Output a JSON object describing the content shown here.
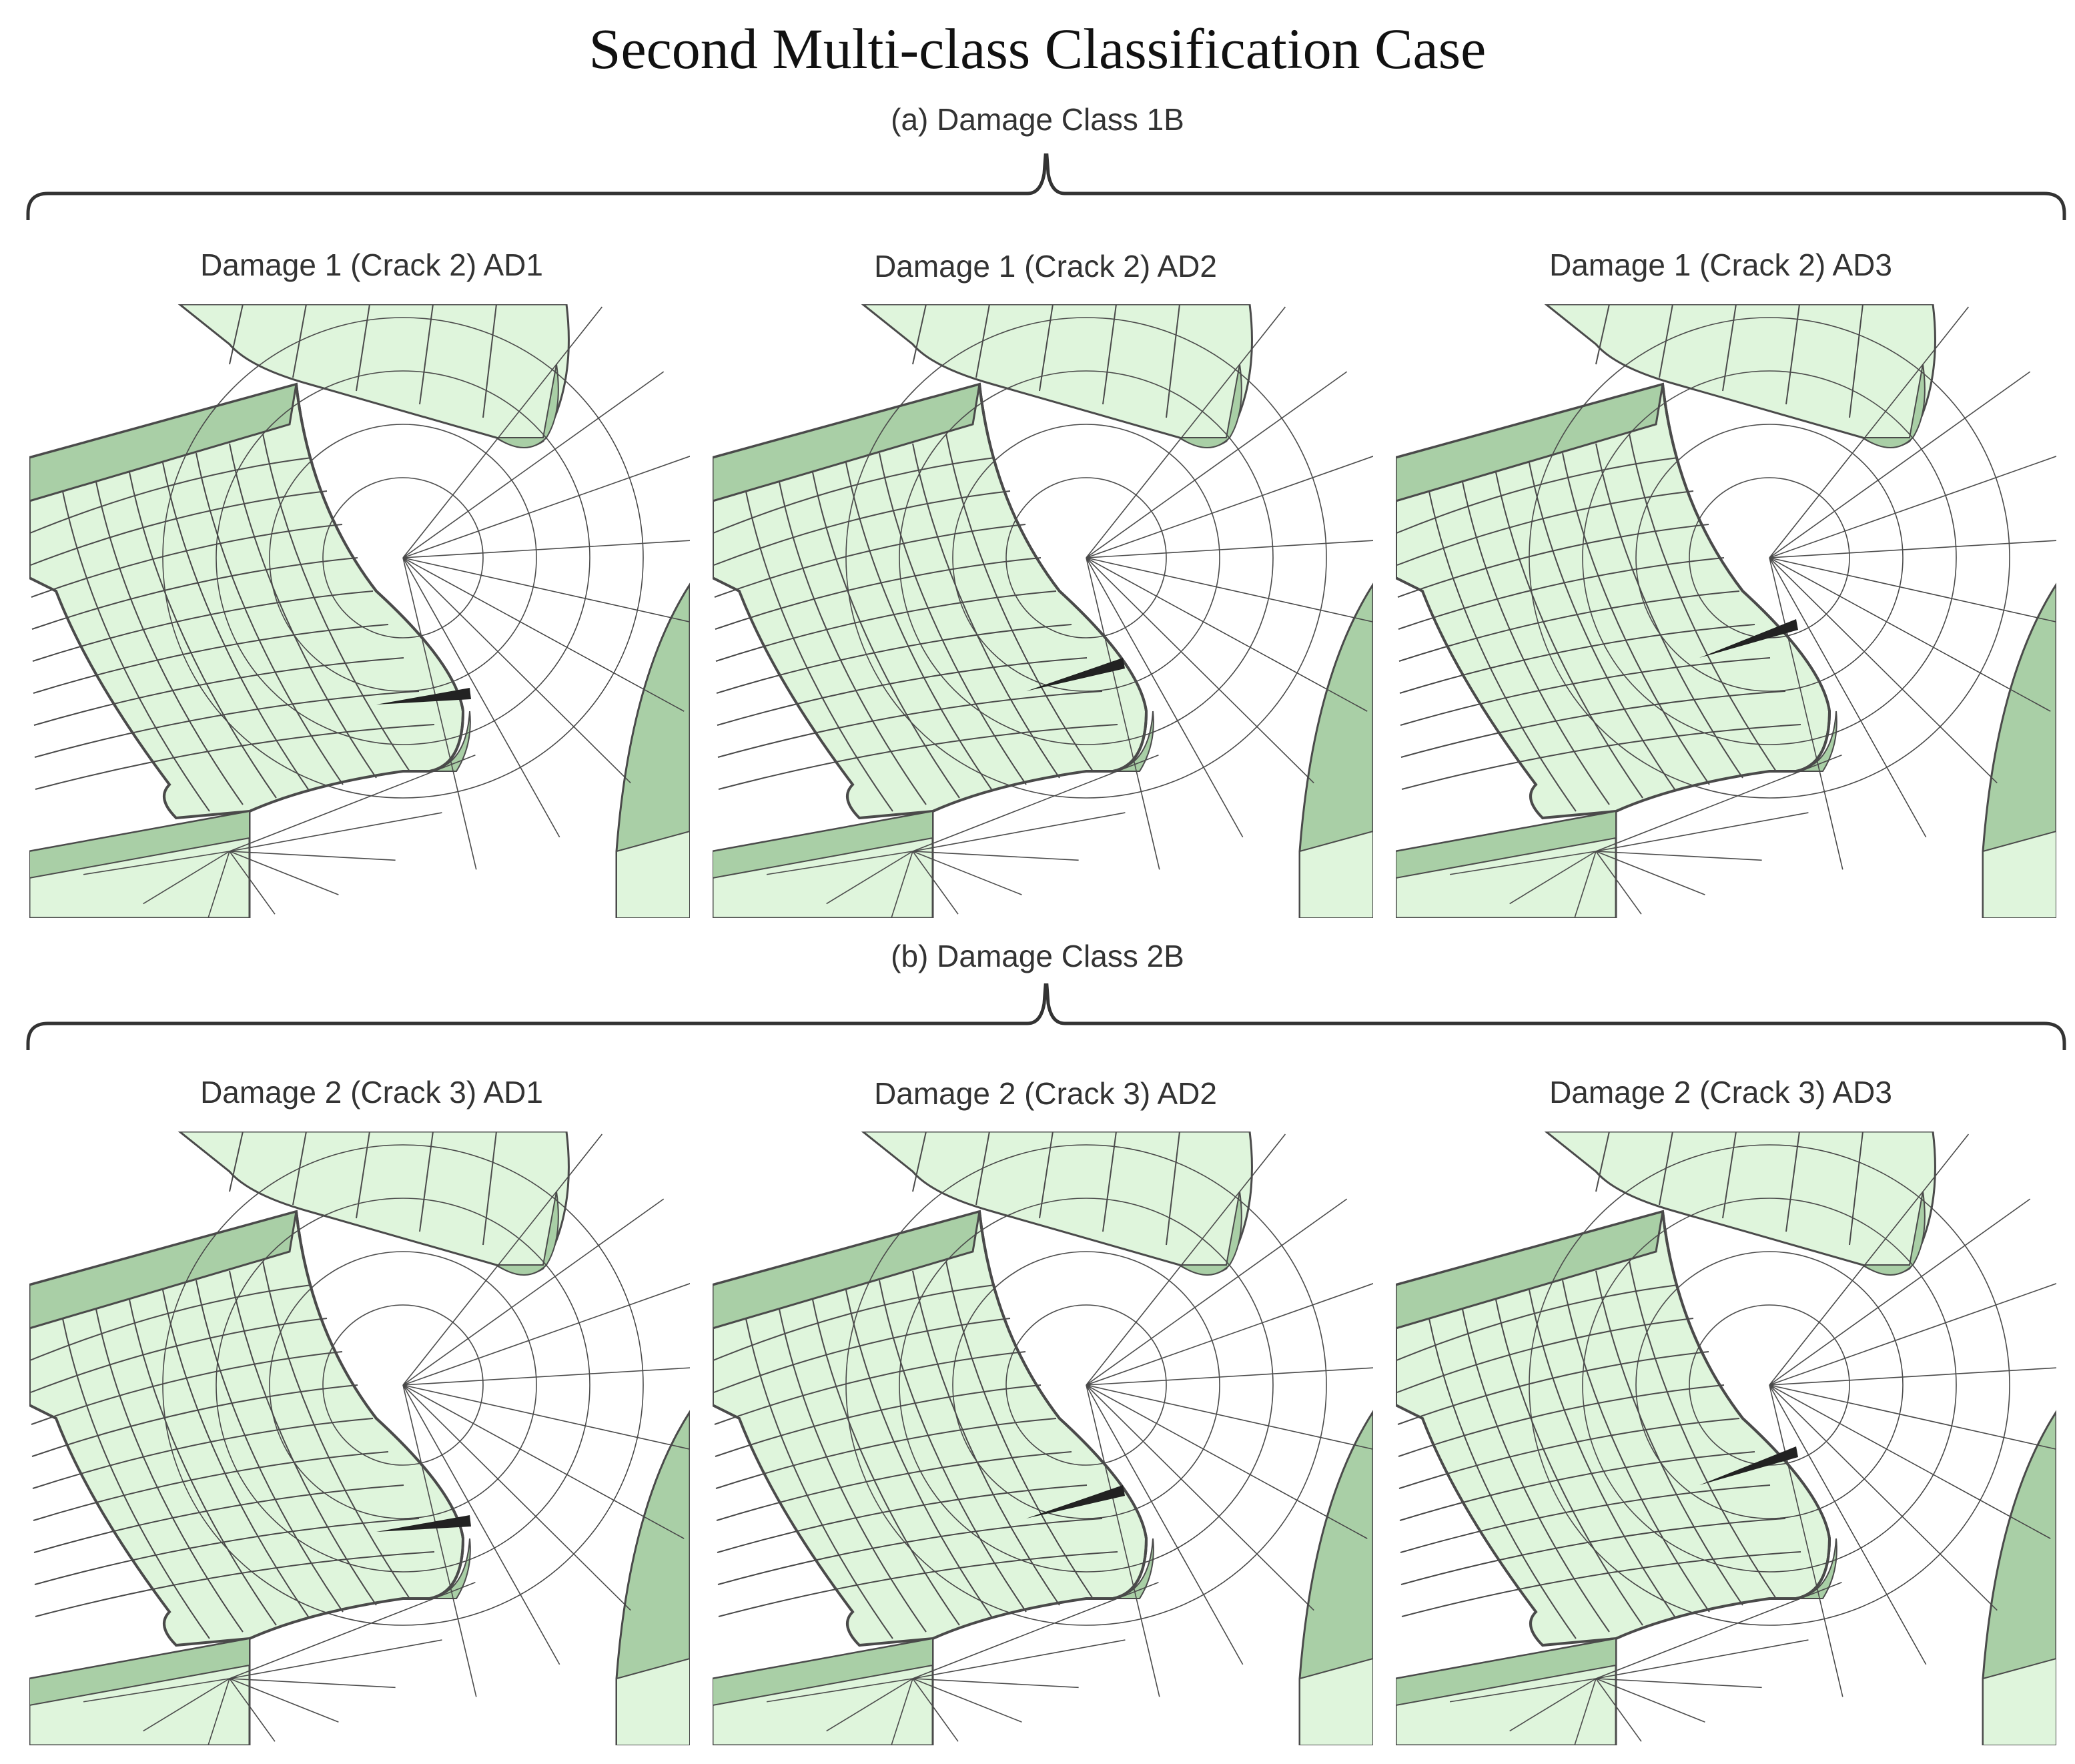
{
  "title": "Second Multi-class Classification Case",
  "sections": [
    {
      "label": "(a) Damage Class 1B",
      "panels": [
        {
          "label": "Damage 1 (Crack 2) AD1"
        },
        {
          "label": "Damage 1 (Crack 2) AD2"
        },
        {
          "label": "Damage 1 (Crack 2) AD3"
        }
      ]
    },
    {
      "label": "(b) Damage Class 2B",
      "panels": [
        {
          "label": "Damage 2 (Crack 3) AD1"
        },
        {
          "label": "Damage 2 (Crack 3) AD2"
        },
        {
          "label": "Damage 2 (Crack 3) AD3"
        }
      ]
    }
  ],
  "colors": {
    "mesh_fill": "#dff5dc",
    "mesh_fill_dark": "#a9cfa6",
    "mesh_line": "#4a4a4a",
    "crack": "#222222",
    "brace": "#333333"
  }
}
